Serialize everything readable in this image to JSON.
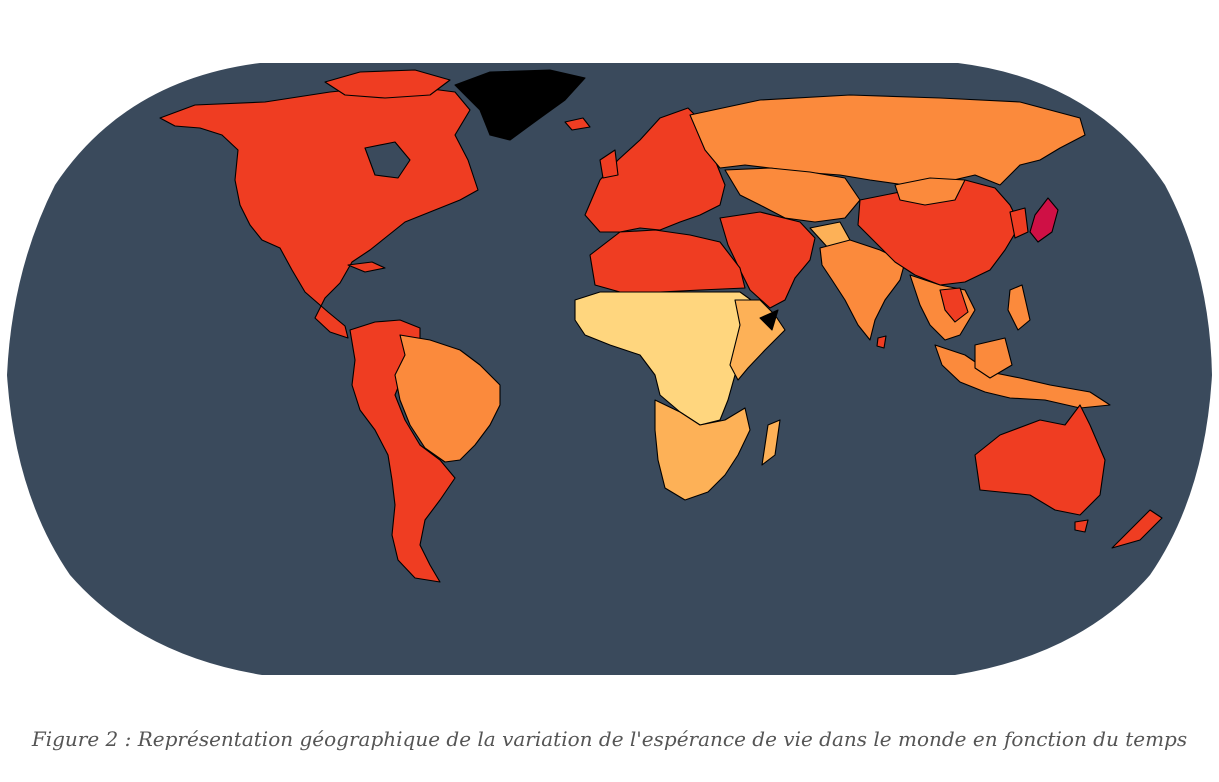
{
  "figure": {
    "caption": "Figure 2 : Représentation géographique de la variation de l'espérance de vie dans le monde en fonction du temps"
  },
  "colors": {
    "ocean": "#3a4a5c",
    "no_data": "#000000",
    "very_low": "#ffd67e",
    "low": "#fdb157",
    "medium": "#fb8a3c",
    "high": "#ef3d22",
    "very_high": "#cf1045"
  },
  "map": {
    "projection": "Robinson",
    "legend": "none",
    "regions": [
      {
        "name": "Canada / USA / Mexique",
        "level": "high"
      },
      {
        "name": "Groenland",
        "level": "no_data"
      },
      {
        "name": "Brésil / Guyanes / Bolivie",
        "level": "medium"
      },
      {
        "name": "Pérou / Chili / Argentine",
        "level": "high"
      },
      {
        "name": "Europe",
        "level": "high"
      },
      {
        "name": "Russie / Asie centrale",
        "level": "medium"
      },
      {
        "name": "Afrique du Nord",
        "level": "high"
      },
      {
        "name": "Afrique subsaharienne",
        "level": "very_low"
      },
      {
        "name": "Afrique australe / orientale",
        "level": "low"
      },
      {
        "name": "Moyen-Orient",
        "level": "high"
      },
      {
        "name": "Inde",
        "level": "medium"
      },
      {
        "name": "Chine",
        "level": "high"
      },
      {
        "name": "Japon",
        "level": "very_high"
      },
      {
        "name": "Asie du Sud-Est",
        "level": "medium"
      },
      {
        "name": "Australie / Nouvelle-Zélande",
        "level": "high"
      }
    ]
  }
}
